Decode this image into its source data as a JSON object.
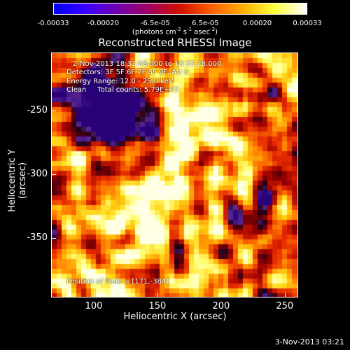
{
  "colorbar": {
    "ticks": [
      "-0.00033",
      "-0.00020",
      "-6.5e-05",
      "6.5e-05",
      "0.00020",
      "0.00033"
    ],
    "tick_values": [
      -0.00033,
      -0.0002,
      -6.5e-05,
      6.5e-05,
      0.0002,
      0.00033
    ],
    "unit_label": "(photons cm",
    "unit_exp1": "-2",
    "unit_mid": " s",
    "unit_exp2": "-1",
    "unit_mid2": " asec",
    "unit_exp3": "-2",
    "unit_end": ")",
    "colors": [
      "#0000ff",
      "#3a00ff",
      "#7000b0",
      "#a00060",
      "#d01000",
      "#ff6000",
      "#ffb000",
      "#ffff40",
      "#ffffff"
    ]
  },
  "title": "Reconstructed RHESSI Image",
  "overlay": {
    "line1": "2-Nov-2013 18:31:08.000 to 18:35:28.000",
    "line2": "Detectors: 3F 5F 6F 7F 8F 9F, Att 0",
    "line3": "Energy Range: 12.0 - 25.0 keV",
    "line4": "Clean     Total counts: 5.79E+03",
    "peak": "Position of Peak = [171,-384]"
  },
  "axes": {
    "xlabel": "Heliocentric X (arcsec)",
    "ylabel": "Heliocentric Y (arcsec)",
    "xticks": [
      "100",
      "150",
      "200",
      "250"
    ],
    "yticks": [
      "-250",
      "-300",
      "-350"
    ]
  },
  "timestamp": "3-Nov-2013 03:21",
  "chart_data": {
    "type": "heatmap",
    "title": "Reconstructed RHESSI Image",
    "xlabel": "Heliocentric X (arcsec)",
    "ylabel": "Heliocentric Y (arcsec)",
    "xlim": [
      67,
      260
    ],
    "ylim": [
      -396,
      -205
    ],
    "xticks": [
      100,
      150,
      200,
      250
    ],
    "yticks": [
      -250,
      -300,
      -350
    ],
    "colorbar_range": [
      -0.00033,
      0.00033
    ],
    "peak_position": [
      171,
      -384
    ],
    "grid": false
  }
}
